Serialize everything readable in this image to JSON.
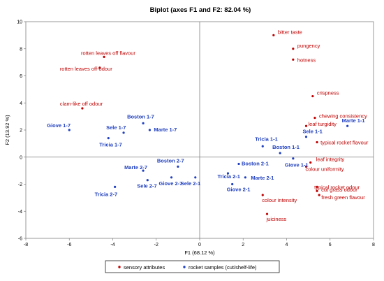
{
  "chart_data": {
    "type": "scatter",
    "title": "Biplot (axes F1 and F2: 82.04 %)",
    "xlabel": "F1 (68.12 %)",
    "ylabel": "F2 (13.92 %)",
    "xlim": [
      -8,
      8
    ],
    "ylim": [
      -6,
      10
    ],
    "xticks": [
      -8,
      -6,
      -4,
      -2,
      0,
      2,
      4,
      6,
      8
    ],
    "yticks": [
      -6,
      -4,
      -2,
      0,
      2,
      4,
      6,
      8,
      10
    ],
    "grid": false,
    "legend_position": "bottom",
    "series": [
      {
        "name": "sensory attributes",
        "color": "#c00000",
        "points": [
          {
            "label": "bitter taste",
            "x": 3.4,
            "y": 9.0
          },
          {
            "label": "pungency",
            "x": 4.3,
            "y": 8.0
          },
          {
            "label": "hotness",
            "x": 4.3,
            "y": 7.2
          },
          {
            "label": "rotten leaves off flavour",
            "x": -4.4,
            "y": 7.4
          },
          {
            "label": "rotten leaves off-odour",
            "x": -4.6,
            "y": 6.6
          },
          {
            "label": "crispness",
            "x": 5.2,
            "y": 4.5
          },
          {
            "label": "clam-like off odour",
            "x": -5.4,
            "y": 3.6
          },
          {
            "label": "chewing consistency",
            "x": 5.3,
            "y": 2.9
          },
          {
            "label": "leaf turgidity",
            "x": 4.9,
            "y": 2.3
          },
          {
            "label": "typical rocket flavour",
            "x": 5.4,
            "y": 1.1
          },
          {
            "label": "leaf integrity",
            "x": 5.1,
            "y": -0.4
          },
          {
            "label": "colour uniformity",
            "x": 4.9,
            "y": -0.7
          },
          {
            "label": "typical rocket odour",
            "x": 5.4,
            "y": -2.2
          },
          {
            "label": "cut grass odour",
            "x": 5.4,
            "y": -2.5
          },
          {
            "label": "fresh green flavour",
            "x": 5.5,
            "y": -2.8
          },
          {
            "label": "colour intensity",
            "x": 2.9,
            "y": -2.8
          },
          {
            "label": "juiciness",
            "x": 3.1,
            "y": -4.2
          }
        ]
      },
      {
        "name": "rocket samples (cut/shelf-life)",
        "color": "#1f3fbf",
        "points": [
          {
            "label": "Boston 1-7",
            "x": -2.6,
            "y": 2.5
          },
          {
            "label": "Sele 1-7",
            "x": -3.5,
            "y": 1.8
          },
          {
            "label": "Marte 1-7",
            "x": -2.3,
            "y": 2.0
          },
          {
            "label": "Giove 1-7",
            "x": -6.0,
            "y": 2.0
          },
          {
            "label": "Tricia 1-7",
            "x": -4.2,
            "y": 1.4
          },
          {
            "label": "Tricia 1-1",
            "x": 2.9,
            "y": 0.8
          },
          {
            "label": "Sele 1-1",
            "x": 4.9,
            "y": 1.5
          },
          {
            "label": "Marte 1-1",
            "x": 6.8,
            "y": 2.3
          },
          {
            "label": "Boston 1-1",
            "x": 3.7,
            "y": 0.3
          },
          {
            "label": "Giove 1-1",
            "x": 4.3,
            "y": -0.1
          },
          {
            "label": "Boston 2-7",
            "x": -1.0,
            "y": -0.7
          },
          {
            "label": "Marte 2-7",
            "x": -2.6,
            "y": -1.0
          },
          {
            "label": "Sele 2-7",
            "x": -2.4,
            "y": -1.7
          },
          {
            "label": "Giove 2-7",
            "x": -1.3,
            "y": -1.5
          },
          {
            "label": "Sele 2-1",
            "x": -0.2,
            "y": -1.5
          },
          {
            "label": "Tricia 2-7",
            "x": -3.9,
            "y": -2.2
          },
          {
            "label": "Boston 2-1",
            "x": 1.8,
            "y": -0.5
          },
          {
            "label": "Tricia 2-1",
            "x": 1.3,
            "y": -1.2
          },
          {
            "label": "Marte 2-1",
            "x": 2.1,
            "y": -1.5
          },
          {
            "label": "Giove 2-1",
            "x": 1.5,
            "y": -2.0
          }
        ]
      }
    ]
  }
}
